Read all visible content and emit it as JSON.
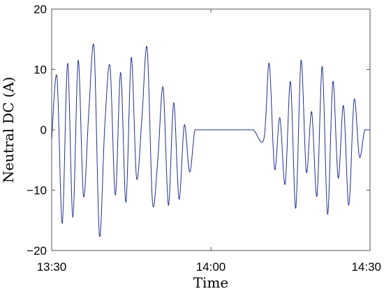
{
  "chart_data": {
    "type": "line",
    "title": "",
    "xlabel": "Time",
    "ylabel": "Neutral DC (A)",
    "xlim": [
      "13:30",
      "14:30"
    ],
    "ylim": [
      -20,
      20
    ],
    "x_ticks": [
      "13:30",
      "14:00",
      "14:30"
    ],
    "y_ticks": [
      "20",
      "10",
      "0",
      "−10",
      "−20"
    ],
    "y_tick_values": [
      20,
      10,
      0,
      -10,
      -20
    ],
    "grid": false,
    "legend": "none",
    "series_color": "#1f2f8f",
    "series": [
      {
        "x": [
          "13:30",
          "13:31",
          "13:32",
          "13:33",
          "13:34",
          "13:35",
          "13:36",
          "13:37",
          "13:38",
          "13:39",
          "13:40",
          "13:41",
          "13:42",
          "13:43",
          "13:44",
          "13:45",
          "13:46",
          "13:47",
          "13:48",
          "13:49",
          "13:50",
          "13:51",
          "13:52",
          "13:53",
          "13:54",
          "13:55",
          "13:56",
          "13:57",
          "13:58",
          "13:59",
          "14:00",
          "14:02",
          "14:04",
          "14:06",
          "14:08",
          "14:10",
          "14:11",
          "14:12",
          "14:13",
          "14:14",
          "14:15",
          "14:16",
          "14:17",
          "14:18",
          "14:19",
          "14:20",
          "14:21",
          "14:22",
          "14:23",
          "14:24",
          "14:25",
          "14:26",
          "14:27",
          "14:28",
          "14:29",
          "14:30"
        ],
        "y": [
          -1.5,
          8.8,
          -15.5,
          11.0,
          -14.5,
          11.5,
          -11.0,
          3.0,
          13.5,
          -17.5,
          0.5,
          10.5,
          -10.8,
          9.5,
          -12.0,
          12.0,
          -8.0,
          1.8,
          13.5,
          -12.0,
          -5.0,
          7.0,
          -12.5,
          4.5,
          -11.5,
          0.8,
          -7.0,
          0.0,
          0.0,
          0.0,
          0.0,
          0.0,
          0.0,
          0.0,
          0.0,
          -1.5,
          11.0,
          -6.5,
          2.0,
          -9.0,
          8.0,
          -13.0,
          11.5,
          -7.0,
          3.0,
          -11.0,
          10.5,
          -14.0,
          8.0,
          -8.0,
          4.0,
          -12.5,
          5.0,
          -4.5,
          0.0,
          0.0
        ]
      }
    ]
  }
}
